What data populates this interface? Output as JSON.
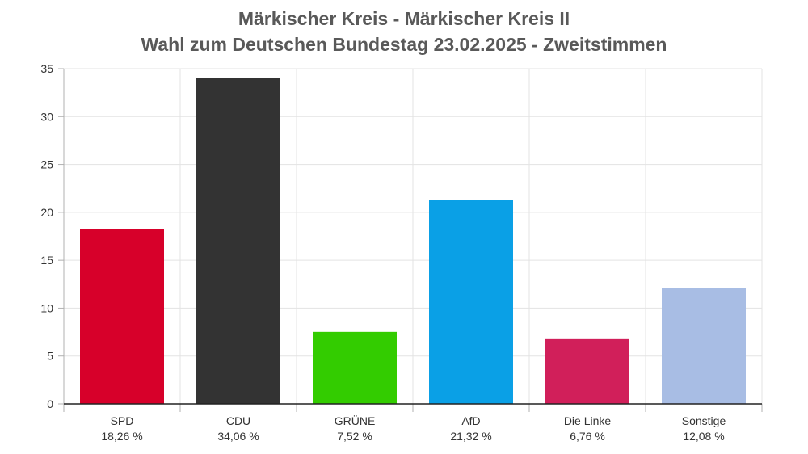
{
  "chart_data": {
    "type": "bar",
    "title": "Märkischer Kreis - Märkischer Kreis II",
    "subtitle": "Wahl zum Deutschen Bundestag 23.02.2025  - Zweitstimmen",
    "categories": [
      "SPD",
      "CDU",
      "GRÜNE",
      "AfD",
      "Die Linke",
      "Sonstige"
    ],
    "values": [
      18.26,
      34.06,
      7.52,
      21.32,
      6.76,
      12.08
    ],
    "value_labels": [
      "18,26 %",
      "34,06 %",
      "7,52 %",
      "21,32 %",
      "6,76 %",
      "12,08 %"
    ],
    "colors": [
      "#d7002a",
      "#333333",
      "#33cc00",
      "#0aa0e6",
      "#d11f5a",
      "#a8bde4"
    ],
    "ylim": [
      0,
      35
    ],
    "yticks": [
      0,
      5,
      10,
      15,
      20,
      25,
      30,
      35
    ],
    "xlabel": "",
    "ylabel": "",
    "grid": true,
    "legend": "none"
  }
}
